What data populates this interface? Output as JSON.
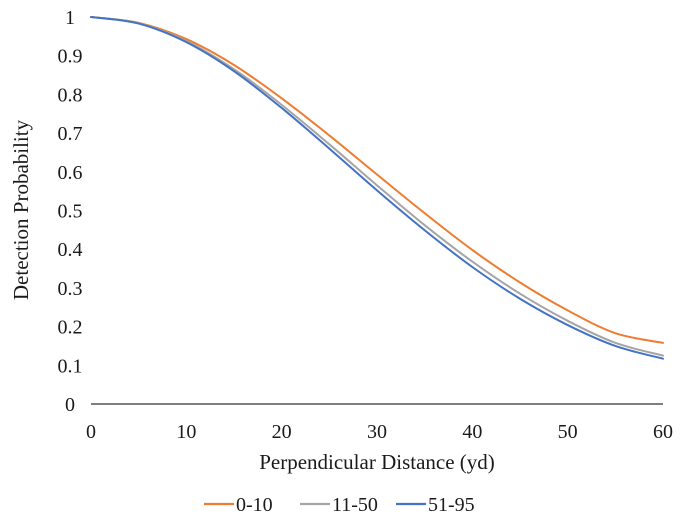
{
  "chart_data": {
    "type": "line",
    "title": "",
    "xlabel": "Perpendicular Distance (yd)",
    "ylabel": "Detection Probability",
    "xlim": [
      0,
      60
    ],
    "ylim": [
      0,
      1
    ],
    "x_ticks": [
      "0",
      "10",
      "20",
      "30",
      "40",
      "50",
      "60"
    ],
    "y_ticks": [
      "0",
      "0.1",
      "0.2",
      "0.3",
      "0.4",
      "0.5",
      "0.6",
      "0.7",
      "0.8",
      "0.9",
      "1"
    ],
    "grid": false,
    "legend_position": "bottom",
    "x": [
      0,
      5,
      10,
      15,
      20,
      25,
      30,
      35,
      40,
      45,
      50,
      55,
      60
    ],
    "series": [
      {
        "name": "0-10",
        "color": "#ED7D31",
        "values": [
          1.0,
          0.985,
          0.943,
          0.876,
          0.79,
          0.694,
          0.593,
          0.493,
          0.398,
          0.314,
          0.242,
          0.183,
          0.158
        ]
      },
      {
        "name": "11-50",
        "color": "#A5A5A5",
        "values": [
          1.0,
          0.984,
          0.938,
          0.865,
          0.773,
          0.671,
          0.565,
          0.462,
          0.368,
          0.285,
          0.215,
          0.158,
          0.125
        ]
      },
      {
        "name": "51-95",
        "color": "#4472C4",
        "values": [
          1.0,
          0.983,
          0.935,
          0.86,
          0.765,
          0.66,
          0.552,
          0.449,
          0.354,
          0.272,
          0.204,
          0.15,
          0.117
        ]
      }
    ]
  }
}
